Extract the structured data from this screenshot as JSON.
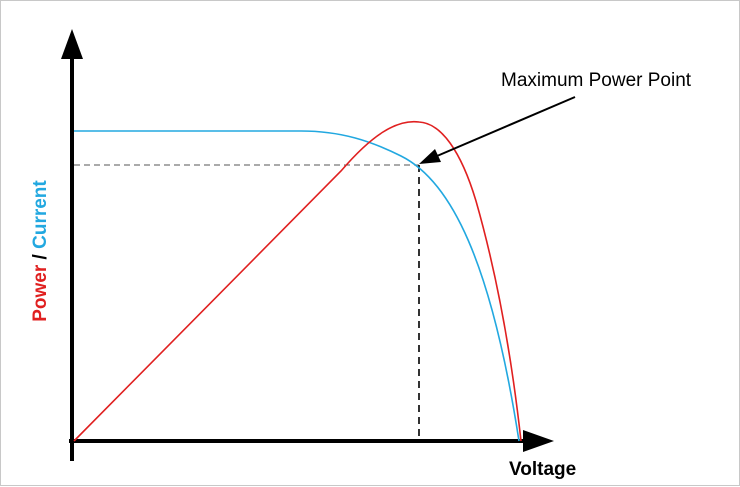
{
  "diagram": {
    "annotation": "Maximum Power Point",
    "x_axis_label": "Voltage",
    "y_axis_label_power": "Power",
    "y_axis_label_separator": " / ",
    "y_axis_label_current": "Current",
    "colors": {
      "power": "#e02020",
      "current": "#22a8e0",
      "axis": "#000000",
      "guide": "#000000"
    }
  }
}
